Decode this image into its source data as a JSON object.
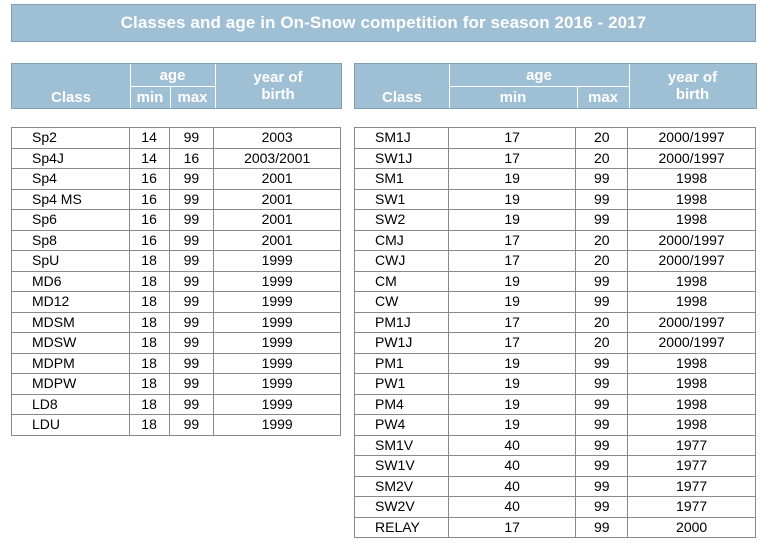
{
  "title": "Classes and age in On-Snow competition for season 2016 - 2017",
  "header": {
    "class": "Class",
    "age": "age",
    "min": "min",
    "max": "max",
    "year_of_birth_line1": "year of",
    "year_of_birth_line2": "birth"
  },
  "left_rows": [
    {
      "class": "Sp2",
      "min": "14",
      "max": "99",
      "year": "2003"
    },
    {
      "class": "Sp4J",
      "min": "14",
      "max": "16",
      "year": "2003/2001"
    },
    {
      "class": "Sp4",
      "min": "16",
      "max": "99",
      "year": "2001"
    },
    {
      "class": "Sp4 MS",
      "min": "16",
      "max": "99",
      "year": "2001"
    },
    {
      "class": "Sp6",
      "min": "16",
      "max": "99",
      "year": "2001"
    },
    {
      "class": "Sp8",
      "min": "16",
      "max": "99",
      "year": "2001"
    },
    {
      "class": "SpU",
      "min": "18",
      "max": "99",
      "year": "1999"
    },
    {
      "class": "MD6",
      "min": "18",
      "max": "99",
      "year": "1999"
    },
    {
      "class": "MD12",
      "min": "18",
      "max": "99",
      "year": "1999"
    },
    {
      "class": "MDSM",
      "min": "18",
      "max": "99",
      "year": "1999"
    },
    {
      "class": "MDSW",
      "min": "18",
      "max": "99",
      "year": "1999"
    },
    {
      "class": "MDPM",
      "min": "18",
      "max": "99",
      "year": "1999"
    },
    {
      "class": "MDPW",
      "min": "18",
      "max": "99",
      "year": "1999"
    },
    {
      "class": "LD8",
      "min": "18",
      "max": "99",
      "year": "1999"
    },
    {
      "class": "LDU",
      "min": "18",
      "max": "99",
      "year": "1999"
    }
  ],
  "right_rows": [
    {
      "class": "SM1J",
      "min": "17",
      "max": "20",
      "year": "2000/1997"
    },
    {
      "class": "SW1J",
      "min": "17",
      "max": "20",
      "year": "2000/1997"
    },
    {
      "class": "SM1",
      "min": "19",
      "max": "99",
      "year": "1998"
    },
    {
      "class": "SW1",
      "min": "19",
      "max": "99",
      "year": "1998"
    },
    {
      "class": "SW2",
      "min": "19",
      "max": "99",
      "year": "1998"
    },
    {
      "class": "CMJ",
      "min": "17",
      "max": "20",
      "year": "2000/1997"
    },
    {
      "class": "CWJ",
      "min": "17",
      "max": "20",
      "year": "2000/1997"
    },
    {
      "class": "CM",
      "min": "19",
      "max": "99",
      "year": "1998"
    },
    {
      "class": "CW",
      "min": "19",
      "max": "99",
      "year": "1998"
    },
    {
      "class": "PM1J",
      "min": "17",
      "max": "20",
      "year": "2000/1997"
    },
    {
      "class": "PW1J",
      "min": "17",
      "max": "20",
      "year": "2000/1997"
    },
    {
      "class": "PM1",
      "min": "19",
      "max": "99",
      "year": "1998"
    },
    {
      "class": "PW1",
      "min": "19",
      "max": "99",
      "year": "1998"
    },
    {
      "class": "PM4",
      "min": "19",
      "max": "99",
      "year": "1998"
    },
    {
      "class": "PW4",
      "min": "19",
      "max": "99",
      "year": "1998"
    },
    {
      "class": "SM1V",
      "min": "40",
      "max": "99",
      "year": "1977"
    },
    {
      "class": "SW1V",
      "min": "40",
      "max": "99",
      "year": "1977"
    },
    {
      "class": "SM2V",
      "min": "40",
      "max": "99",
      "year": "1977"
    },
    {
      "class": "SW2V",
      "min": "40",
      "max": "99",
      "year": "1977"
    },
    {
      "class": "RELAY",
      "min": "17",
      "max": "99",
      "year": "2000"
    }
  ],
  "colors": {
    "header_bg": "#9fbfd4",
    "header_text": "#ffffff",
    "grid": "#8a8a8a"
  }
}
